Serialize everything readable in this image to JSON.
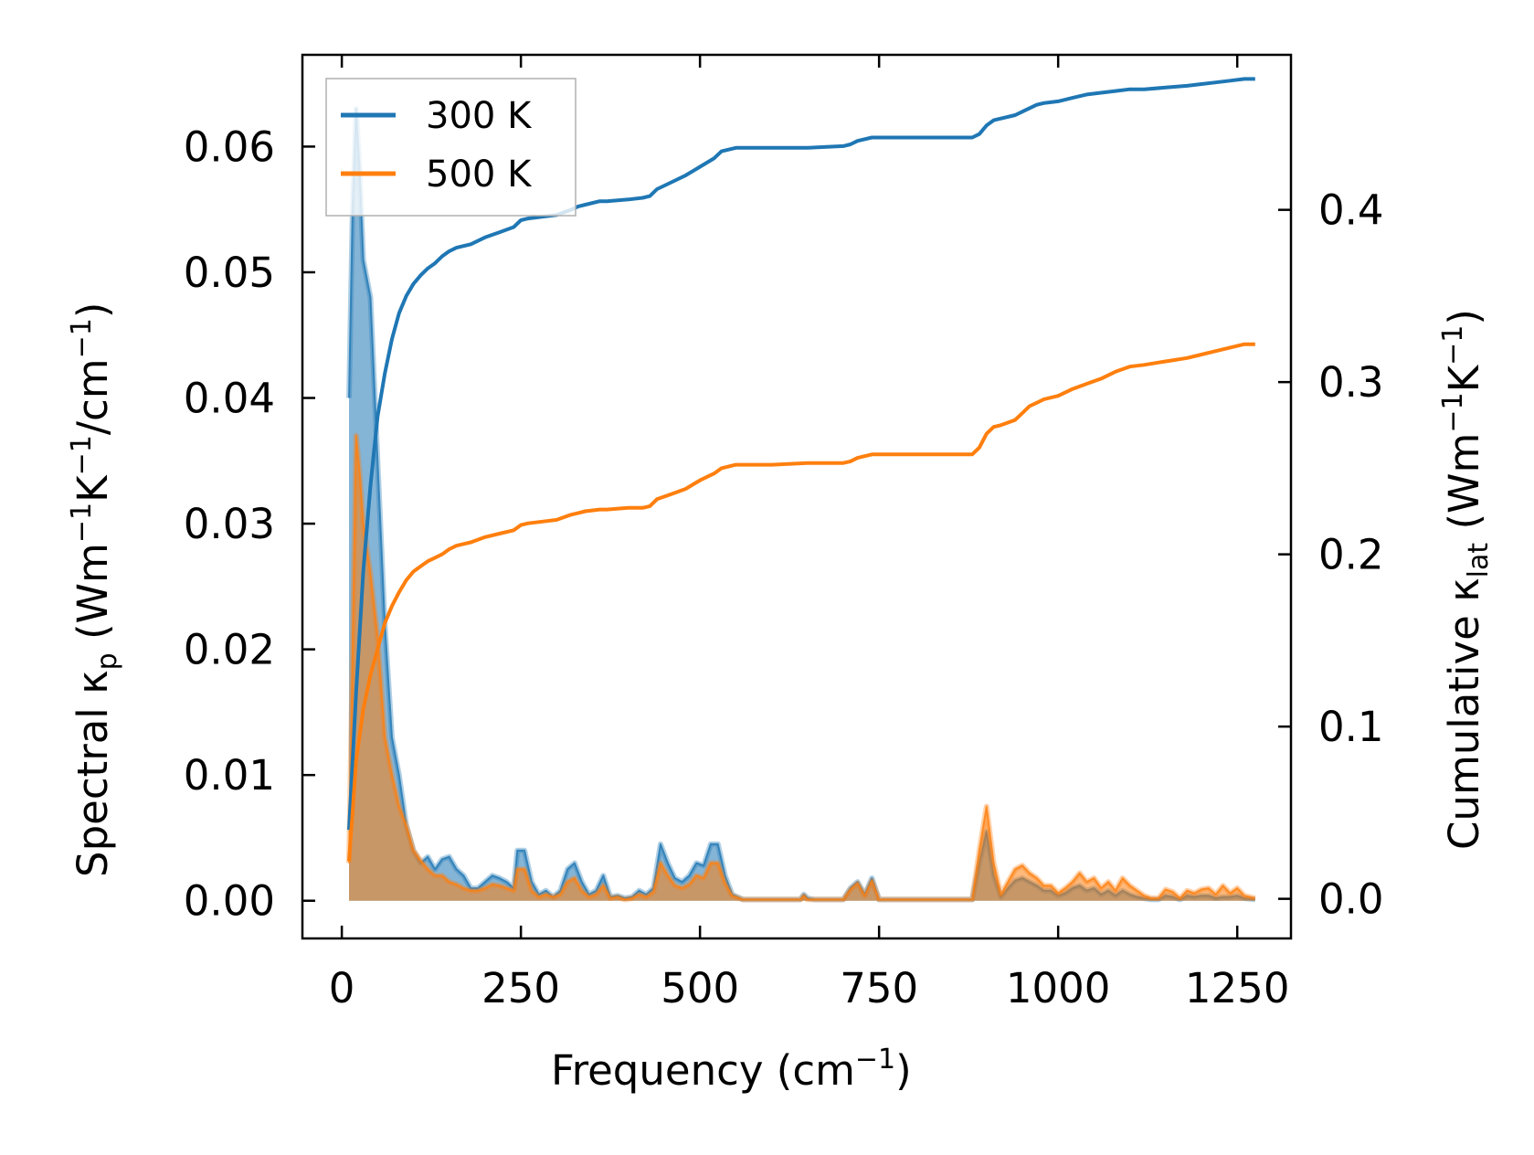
{
  "chart_data": {
    "type": "line",
    "xlabel": "Frequency (cm",
    "xlabel_sup": "−1",
    "xlabel_end": ")",
    "ylabel_left": {
      "a": "Spectral κ",
      "a_sub": "p",
      "b": " (Wm",
      "b_sup": "−1",
      "c": "K",
      "c_sup": "−1",
      "d": "/cm",
      "d_sup": "−1",
      "e": ")"
    },
    "ylabel_right": {
      "a": "Cumulative κ",
      "a_sub": "lat",
      "b": " (Wm",
      "b_sup": "−1",
      "c": "K",
      "c_sup": "−1",
      "d": ")"
    },
    "xlim": [
      -55,
      1325
    ],
    "ylim_left": [
      -0.003,
      0.0673
    ],
    "ylim_right": [
      -0.023,
      0.49
    ],
    "x_ticks": [
      0,
      250,
      500,
      750,
      1000,
      1250
    ],
    "x_tick_labels": [
      "0",
      "250",
      "500",
      "750",
      "1000",
      "1250"
    ],
    "y_left_ticks": [
      0.0,
      0.01,
      0.02,
      0.03,
      0.04,
      0.05,
      0.06
    ],
    "y_left_tick_labels": [
      "0.00",
      "0.01",
      "0.02",
      "0.03",
      "0.04",
      "0.05",
      "0.06"
    ],
    "y_right_ticks": [
      0.0,
      0.1,
      0.2,
      0.3,
      0.4
    ],
    "y_right_tick_labels": [
      "0.0",
      "0.1",
      "0.2",
      "0.3",
      "0.4"
    ],
    "legend": {
      "location": "top-left",
      "entries": [
        "300 K",
        "500 K"
      ]
    },
    "colors": {
      "300 K": "#1f77b4",
      "500 K": "#ff7f0e",
      "overlap_fill": "#c49a6c"
    },
    "spectral": [
      {
        "name": "300 K",
        "x": [
          10,
          15,
          20,
          25,
          30,
          40,
          50,
          60,
          70,
          80,
          90,
          100,
          110,
          120,
          130,
          140,
          150,
          160,
          170,
          180,
          190,
          200,
          210,
          220,
          230,
          240,
          245,
          255,
          265,
          275,
          285,
          295,
          305,
          315,
          325,
          335,
          345,
          355,
          365,
          375,
          385,
          395,
          405,
          415,
          425,
          435,
          445,
          455,
          465,
          475,
          485,
          495,
          505,
          515,
          525,
          535,
          545,
          560,
          580,
          600,
          620,
          640,
          645,
          650,
          660,
          680,
          700,
          710,
          720,
          730,
          740,
          750,
          760,
          780,
          800,
          820,
          840,
          860,
          880,
          890,
          900,
          910,
          920,
          930,
          940,
          950,
          960,
          970,
          980,
          990,
          1000,
          1010,
          1020,
          1030,
          1040,
          1050,
          1060,
          1070,
          1080,
          1090,
          1100,
          1110,
          1120,
          1130,
          1140,
          1150,
          1160,
          1170,
          1180,
          1190,
          1200,
          1210,
          1220,
          1230,
          1240,
          1250,
          1260,
          1275
        ],
        "y": [
          0.04,
          0.055,
          0.063,
          0.058,
          0.051,
          0.048,
          0.035,
          0.022,
          0.013,
          0.01,
          0.006,
          0.004,
          0.003,
          0.0035,
          0.0025,
          0.0033,
          0.0035,
          0.0025,
          0.002,
          0.001,
          0.001,
          0.0015,
          0.002,
          0.0018,
          0.0015,
          0.001,
          0.004,
          0.004,
          0.0015,
          0.0005,
          0.0008,
          0.0003,
          0.0008,
          0.0025,
          0.003,
          0.0015,
          0.0005,
          0.0008,
          0.002,
          0.0003,
          0.0004,
          0.0002,
          0.0003,
          0.0008,
          0.0005,
          0.001,
          0.0045,
          0.003,
          0.0018,
          0.0015,
          0.002,
          0.003,
          0.0028,
          0.0045,
          0.0045,
          0.002,
          0.0005,
          0.0001,
          0.0001,
          0.0001,
          0.0001,
          0.0001,
          0.0005,
          0.0002,
          0.0001,
          0.0001,
          0.0001,
          0.001,
          0.0015,
          0.0005,
          0.0018,
          0.0001,
          0.0001,
          0.0001,
          0.0001,
          0.0001,
          0.0001,
          0.0001,
          0.0001,
          0.003,
          0.0055,
          0.002,
          0.0003,
          0.001,
          0.0016,
          0.0018,
          0.0015,
          0.0012,
          0.0008,
          0.0008,
          0.0004,
          0.0006,
          0.001,
          0.0012,
          0.0008,
          0.001,
          0.0005,
          0.0008,
          0.0004,
          0.0008,
          0.0005,
          0.0003,
          0.0002,
          0.0001,
          0.0001,
          0.0004,
          0.0003,
          0.0001,
          0.0004,
          0.0003,
          0.0004,
          0.0004,
          0.0002,
          0.0003,
          0.0003,
          0.0004,
          0.0002,
          0.0001
        ]
      },
      {
        "name": "500 K",
        "x": [
          10,
          15,
          20,
          25,
          30,
          40,
          50,
          60,
          70,
          80,
          90,
          100,
          110,
          120,
          130,
          140,
          150,
          160,
          170,
          180,
          190,
          200,
          210,
          220,
          230,
          240,
          245,
          255,
          265,
          275,
          285,
          295,
          305,
          315,
          325,
          335,
          345,
          355,
          365,
          375,
          385,
          395,
          405,
          415,
          425,
          435,
          445,
          455,
          465,
          475,
          485,
          495,
          505,
          515,
          525,
          535,
          545,
          560,
          580,
          600,
          620,
          640,
          645,
          650,
          660,
          680,
          700,
          710,
          720,
          730,
          740,
          750,
          760,
          780,
          800,
          820,
          840,
          860,
          880,
          890,
          900,
          910,
          920,
          930,
          940,
          950,
          960,
          970,
          980,
          990,
          1000,
          1010,
          1020,
          1030,
          1040,
          1050,
          1060,
          1070,
          1080,
          1090,
          1100,
          1110,
          1120,
          1130,
          1140,
          1150,
          1160,
          1170,
          1180,
          1190,
          1200,
          1210,
          1220,
          1230,
          1240,
          1250,
          1260,
          1275
        ],
        "y": [
          0.003,
          0.02,
          0.037,
          0.034,
          0.03,
          0.026,
          0.021,
          0.013,
          0.01,
          0.0075,
          0.006,
          0.004,
          0.0032,
          0.0025,
          0.002,
          0.002,
          0.0015,
          0.0013,
          0.001,
          0.0008,
          0.0008,
          0.001,
          0.0013,
          0.0012,
          0.001,
          0.0008,
          0.0025,
          0.0025,
          0.0008,
          0.0003,
          0.0005,
          0.0003,
          0.0005,
          0.0015,
          0.0018,
          0.0008,
          0.0003,
          0.0005,
          0.0012,
          0.0002,
          0.0003,
          0.0001,
          0.0002,
          0.0005,
          0.0003,
          0.0007,
          0.003,
          0.002,
          0.0012,
          0.001,
          0.0013,
          0.002,
          0.0018,
          0.003,
          0.003,
          0.0014,
          0.0004,
          0.0001,
          0.0001,
          0.0001,
          0.0001,
          0.0001,
          0.0004,
          0.0001,
          0.0001,
          0.0001,
          0.0001,
          0.0009,
          0.0014,
          0.0004,
          0.0016,
          0.0001,
          0.0001,
          0.0001,
          0.0001,
          0.0001,
          0.0001,
          0.0001,
          0.0001,
          0.004,
          0.0075,
          0.003,
          0.0005,
          0.0015,
          0.0025,
          0.0028,
          0.0022,
          0.0018,
          0.0012,
          0.0012,
          0.0006,
          0.001,
          0.0015,
          0.0022,
          0.0015,
          0.0018,
          0.001,
          0.0015,
          0.0008,
          0.0018,
          0.0012,
          0.0008,
          0.0004,
          0.0002,
          0.0002,
          0.0009,
          0.0007,
          0.0002,
          0.0008,
          0.0006,
          0.0009,
          0.001,
          0.0005,
          0.0012,
          0.0006,
          0.001,
          0.0004,
          0.0002
        ]
      }
    ],
    "cumulative": [
      {
        "name": "300 K",
        "x": [
          10,
          15,
          20,
          30,
          40,
          50,
          60,
          70,
          80,
          90,
          100,
          110,
          120,
          130,
          140,
          150,
          160,
          170,
          180,
          200,
          220,
          240,
          250,
          260,
          280,
          300,
          320,
          330,
          340,
          360,
          370,
          400,
          420,
          430,
          440,
          460,
          480,
          500,
          520,
          530,
          550,
          570,
          600,
          650,
          700,
          710,
          720,
          740,
          760,
          800,
          850,
          880,
          890,
          900,
          910,
          920,
          940,
          950,
          960,
          970,
          980,
          1000,
          1020,
          1040,
          1060,
          1080,
          1100,
          1120,
          1150,
          1180,
          1200,
          1220,
          1240,
          1260,
          1275
        ],
        "y": [
          0.04,
          0.08,
          0.12,
          0.19,
          0.24,
          0.28,
          0.305,
          0.325,
          0.34,
          0.35,
          0.357,
          0.362,
          0.366,
          0.369,
          0.373,
          0.376,
          0.378,
          0.379,
          0.38,
          0.384,
          0.387,
          0.39,
          0.394,
          0.395,
          0.396,
          0.397,
          0.4,
          0.402,
          0.403,
          0.405,
          0.405,
          0.406,
          0.407,
          0.408,
          0.412,
          0.416,
          0.42,
          0.425,
          0.43,
          0.434,
          0.436,
          0.436,
          0.436,
          0.436,
          0.437,
          0.438,
          0.44,
          0.442,
          0.442,
          0.442,
          0.442,
          0.442,
          0.444,
          0.449,
          0.452,
          0.453,
          0.455,
          0.457,
          0.459,
          0.461,
          0.462,
          0.463,
          0.465,
          0.467,
          0.468,
          0.469,
          0.47,
          0.47,
          0.471,
          0.472,
          0.473,
          0.474,
          0.475,
          0.476,
          0.476
        ]
      },
      {
        "name": "500 K",
        "x": [
          10,
          15,
          20,
          30,
          40,
          50,
          60,
          70,
          80,
          90,
          100,
          110,
          120,
          130,
          140,
          150,
          160,
          170,
          180,
          200,
          220,
          240,
          250,
          260,
          280,
          300,
          320,
          330,
          340,
          360,
          370,
          400,
          420,
          430,
          440,
          460,
          480,
          500,
          520,
          530,
          550,
          570,
          600,
          650,
          700,
          710,
          720,
          740,
          760,
          800,
          850,
          880,
          890,
          900,
          910,
          920,
          940,
          950,
          960,
          970,
          980,
          1000,
          1020,
          1040,
          1060,
          1080,
          1100,
          1120,
          1150,
          1180,
          1200,
          1220,
          1240,
          1260,
          1275
        ],
        "y": [
          0.022,
          0.05,
          0.08,
          0.11,
          0.13,
          0.145,
          0.16,
          0.17,
          0.178,
          0.185,
          0.19,
          0.193,
          0.196,
          0.198,
          0.2,
          0.203,
          0.205,
          0.206,
          0.207,
          0.21,
          0.212,
          0.214,
          0.217,
          0.218,
          0.219,
          0.22,
          0.223,
          0.224,
          0.225,
          0.226,
          0.226,
          0.227,
          0.227,
          0.228,
          0.232,
          0.235,
          0.238,
          0.243,
          0.247,
          0.25,
          0.252,
          0.252,
          0.252,
          0.253,
          0.253,
          0.254,
          0.256,
          0.258,
          0.258,
          0.258,
          0.258,
          0.258,
          0.262,
          0.27,
          0.274,
          0.275,
          0.278,
          0.282,
          0.286,
          0.288,
          0.29,
          0.292,
          0.296,
          0.299,
          0.302,
          0.306,
          0.309,
          0.31,
          0.312,
          0.314,
          0.316,
          0.318,
          0.32,
          0.322,
          0.322
        ]
      }
    ]
  }
}
